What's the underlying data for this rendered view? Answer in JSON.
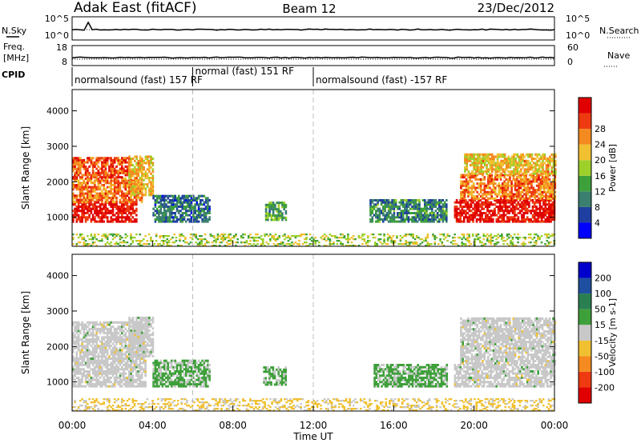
{
  "header": {
    "station": "Adak East (fitACF)",
    "beam": "Beam 12",
    "date": "23/Dec/2012"
  },
  "noise_panel": {
    "left_label": "N.Sky",
    "right_label": "N.Search",
    "left_ticks": [
      "10^5",
      "10^0"
    ],
    "right_ticks": [
      "10^5",
      "10^0"
    ]
  },
  "freq_panel": {
    "left_label_line1": "Freq.",
    "left_label_line2": "[MHz]",
    "right_label": "Nave",
    "left_ticks": [
      "18",
      "8"
    ],
    "right_ticks": [
      "60",
      "0"
    ]
  },
  "cpid": {
    "label": "CPID",
    "segments": [
      {
        "text": "normalsound (fast) 157 RF",
        "start_hour": 0,
        "end_hour": 6
      },
      {
        "text": "normal (fast) 151 RF",
        "start_hour": 6,
        "end_hour": 12
      },
      {
        "text": "normalsound (fast) -157 RF",
        "start_hour": 12,
        "end_hour": 24
      }
    ]
  },
  "time_axis": {
    "label": "Time UT",
    "ticks": [
      "00:00",
      "04:00",
      "08:00",
      "12:00",
      "16:00",
      "20:00",
      "00:00"
    ]
  },
  "colors": {
    "power": [
      "#0000ff",
      "#1f3fa0",
      "#3a7f70",
      "#3ea03a",
      "#9ed02a",
      "#f0c030",
      "#f58a20",
      "#ee3a10",
      "#e00000"
    ],
    "velocity": [
      "#e00000",
      "#ee3a10",
      "#f58a20",
      "#f0c030",
      "#c8c8c8",
      "#3ea03a",
      "#2a7f50",
      "#1f4fa0",
      "#0000cc"
    ]
  },
  "chart_data": [
    {
      "type": "heatmap",
      "title": "Power",
      "xlabel": "Time UT",
      "ylabel": "Slant Range [km]",
      "xlim": [
        0,
        24
      ],
      "ylim": [
        180,
        4600
      ],
      "yticks": [
        "1000",
        "2000",
        "3000",
        "4000"
      ],
      "colorbar": {
        "label": "Power [dB]",
        "ticks": [
          "4",
          "8",
          "12",
          "16",
          "20",
          "24",
          "28"
        ],
        "range": [
          0,
          32
        ]
      },
      "regions": [
        {
          "t0": 0.0,
          "t1": 3.2,
          "r0": 850,
          "r1": 1400,
          "value": 30
        },
        {
          "t0": 0.0,
          "t1": 3.5,
          "r0": 1400,
          "r1": 2100,
          "value": 24
        },
        {
          "t0": 0.0,
          "t1": 2.8,
          "r0": 2100,
          "r1": 2700,
          "value": 26
        },
        {
          "t0": 2.8,
          "t1": 4.0,
          "r0": 1600,
          "r1": 2700,
          "value": 20
        },
        {
          "t0": 4.0,
          "t1": 6.8,
          "r0": 850,
          "r1": 1600,
          "value": 8
        },
        {
          "t0": 9.6,
          "t1": 10.6,
          "r0": 900,
          "r1": 1400,
          "value": 12
        },
        {
          "t0": 14.8,
          "t1": 18.6,
          "r0": 850,
          "r1": 1500,
          "value": 10
        },
        {
          "t0": 19.0,
          "t1": 24.0,
          "r0": 850,
          "r1": 1500,
          "value": 30
        },
        {
          "t0": 19.3,
          "t1": 24.0,
          "r0": 1500,
          "r1": 2200,
          "value": 24
        },
        {
          "t0": 19.5,
          "t1": 24.0,
          "r0": 2200,
          "r1": 2800,
          "value": 20
        },
        {
          "t0": 0.0,
          "t1": 24.0,
          "r0": 180,
          "r1": 500,
          "value": 16
        }
      ]
    },
    {
      "type": "heatmap",
      "title": "Velocity",
      "xlabel": "Time UT",
      "ylabel": "Slant Range [km]",
      "xlim": [
        0,
        24
      ],
      "ylim": [
        180,
        4600
      ],
      "yticks": [
        "1000",
        "2000",
        "3000",
        "4000"
      ],
      "colorbar": {
        "label": "Velocity [m s-1]",
        "ticks": [
          "-200",
          "-100",
          "-50",
          "-15",
          "15",
          "50",
          "100",
          "200"
        ],
        "range": [
          -250,
          250
        ]
      },
      "regions": [
        {
          "t0": 0.0,
          "t1": 3.6,
          "r0": 850,
          "r1": 2700,
          "value": 0
        },
        {
          "t0": 2.8,
          "t1": 4.0,
          "r0": 1700,
          "r1": 2800,
          "value": 0
        },
        {
          "t0": 4.0,
          "t1": 6.8,
          "r0": 850,
          "r1": 1600,
          "value": 40
        },
        {
          "t0": 9.5,
          "t1": 10.6,
          "r0": 900,
          "r1": 1400,
          "value": 40
        },
        {
          "t0": 15.0,
          "t1": 18.6,
          "r0": 850,
          "r1": 1500,
          "value": 40
        },
        {
          "t0": 19.0,
          "t1": 24.0,
          "r0": 850,
          "r1": 1500,
          "value": 0
        },
        {
          "t0": 19.3,
          "t1": 24.0,
          "r0": 1500,
          "r1": 2800,
          "value": 0
        },
        {
          "t0": 0.0,
          "t1": 24.0,
          "r0": 180,
          "r1": 500,
          "value": -40
        }
      ]
    }
  ]
}
